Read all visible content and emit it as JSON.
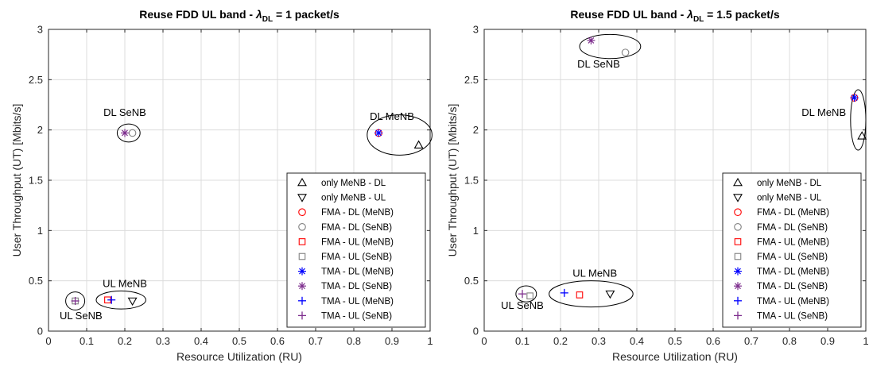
{
  "chart_data": [
    {
      "type": "scatter",
      "title_prefix": "Reuse FDD UL band  - ",
      "title_symbol": "λ",
      "title_subscript": "DL",
      "title_suffix": " = 1 packet/s",
      "xlabel": "Resource Utilization (RU)",
      "ylabel": "User Throughput (UT) [Mbits/s]",
      "xlim": [
        0,
        1
      ],
      "ylim": [
        0,
        3
      ],
      "xticks": [
        "0",
        "0.1",
        "0.2",
        "0.3",
        "0.4",
        "0.5",
        "0.6",
        "0.7",
        "0.8",
        "0.9",
        "1"
      ],
      "yticks": [
        "0",
        "0.5",
        "1",
        "1.5",
        "2",
        "2.5",
        "3"
      ],
      "grid": true,
      "legend_position": "bottom-right",
      "series": [
        {
          "name": "only MeNB - DL",
          "marker": "triangle-up",
          "color": "#000000",
          "points": [
            [
              0.97,
              1.85
            ]
          ]
        },
        {
          "name": "only MeNB - UL",
          "marker": "triangle-down",
          "color": "#000000",
          "points": [
            [
              0.22,
              0.3
            ]
          ]
        },
        {
          "name": "FMA - DL (MeNB)",
          "marker": "circle",
          "color": "#ff0000",
          "points": [
            [
              0.865,
              1.97
            ]
          ]
        },
        {
          "name": "FMA - DL (SeNB)",
          "marker": "circle",
          "color": "#808080",
          "points": [
            [
              0.22,
              1.97
            ]
          ]
        },
        {
          "name": "FMA - UL (MeNB)",
          "marker": "square",
          "color": "#ff0000",
          "points": [
            [
              0.155,
              0.31
            ]
          ]
        },
        {
          "name": "FMA - UL (SeNB)",
          "marker": "square",
          "color": "#808080",
          "points": [
            [
              0.07,
              0.3
            ]
          ]
        },
        {
          "name": "TMA - DL (MeNB)",
          "marker": "asterisk",
          "color": "#0000ff",
          "points": [
            [
              0.865,
              1.97
            ]
          ]
        },
        {
          "name": "TMA - DL (SeNB)",
          "marker": "asterisk",
          "color": "#7e2f8e",
          "points": [
            [
              0.2,
              1.97
            ]
          ]
        },
        {
          "name": "TMA - UL (MeNB)",
          "marker": "plus",
          "color": "#0000ff",
          "points": [
            [
              0.165,
              0.31
            ]
          ]
        },
        {
          "name": "TMA - UL (SeNB)",
          "marker": "plus",
          "color": "#7e2f8e",
          "points": [
            [
              0.07,
              0.3
            ]
          ]
        }
      ],
      "annotations": [
        {
          "text": "DL MeNB",
          "x": 0.9,
          "y": 2.1
        },
        {
          "text": "DL SeNB",
          "x": 0.2,
          "y": 2.14
        },
        {
          "text": "UL MeNB",
          "x": 0.2,
          "y": 0.44
        },
        {
          "text": "UL SeNB",
          "x": 0.085,
          "y": 0.12
        }
      ],
      "ellipses": [
        {
          "cx": 0.92,
          "cy": 1.95,
          "rx": 0.085,
          "ry": 0.2
        },
        {
          "cx": 0.21,
          "cy": 1.97,
          "rx": 0.03,
          "ry": 0.09
        },
        {
          "cx": 0.19,
          "cy": 0.31,
          "rx": 0.065,
          "ry": 0.09
        },
        {
          "cx": 0.07,
          "cy": 0.3,
          "rx": 0.025,
          "ry": 0.09
        }
      ]
    },
    {
      "type": "scatter",
      "title_prefix": "Reuse FDD UL band  - ",
      "title_symbol": "λ",
      "title_subscript": "DL",
      "title_suffix": " = 1.5 packet/s",
      "xlabel": "Resource Utilization (RU)",
      "ylabel": "User Throughput (UT) [Mbits/s]",
      "xlim": [
        0,
        1
      ],
      "ylim": [
        0,
        3
      ],
      "xticks": [
        "0",
        "0.1",
        "0.2",
        "0.3",
        "0.4",
        "0.5",
        "0.6",
        "0.7",
        "0.8",
        "0.9",
        "1"
      ],
      "yticks": [
        "0",
        "0.5",
        "1",
        "1.5",
        "2",
        "2.5",
        "3"
      ],
      "grid": true,
      "legend_position": "bottom-right",
      "series": [
        {
          "name": "only MeNB - DL",
          "marker": "triangle-up",
          "color": "#000000",
          "points": [
            [
              0.99,
              1.94
            ]
          ]
        },
        {
          "name": "only MeNB - UL",
          "marker": "triangle-down",
          "color": "#000000",
          "points": [
            [
              0.33,
              0.37
            ]
          ]
        },
        {
          "name": "FMA - DL (MeNB)",
          "marker": "circle",
          "color": "#ff0000",
          "points": [
            [
              0.97,
              2.32
            ]
          ]
        },
        {
          "name": "FMA - DL (SeNB)",
          "marker": "circle",
          "color": "#808080",
          "points": [
            [
              0.37,
              2.77
            ]
          ]
        },
        {
          "name": "FMA - UL (MeNB)",
          "marker": "square",
          "color": "#ff0000",
          "points": [
            [
              0.25,
              0.36
            ]
          ]
        },
        {
          "name": "FMA - UL (SeNB)",
          "marker": "square",
          "color": "#808080",
          "points": [
            [
              0.12,
              0.35
            ]
          ]
        },
        {
          "name": "TMA - DL (MeNB)",
          "marker": "asterisk",
          "color": "#0000ff",
          "points": [
            [
              0.97,
              2.32
            ]
          ]
        },
        {
          "name": "TMA - DL (SeNB)",
          "marker": "asterisk",
          "color": "#7e2f8e",
          "points": [
            [
              0.28,
              2.89
            ]
          ]
        },
        {
          "name": "TMA - UL (MeNB)",
          "marker": "plus",
          "color": "#0000ff",
          "points": [
            [
              0.21,
              0.38
            ]
          ]
        },
        {
          "name": "TMA - UL (SeNB)",
          "marker": "plus",
          "color": "#7e2f8e",
          "points": [
            [
              0.1,
              0.37
            ]
          ]
        }
      ],
      "annotations": [
        {
          "text": "DL MeNB",
          "x": 0.89,
          "y": 2.14
        },
        {
          "text": "DL SeNB",
          "x": 0.3,
          "y": 2.62
        },
        {
          "text": "UL MeNB",
          "x": 0.29,
          "y": 0.54
        },
        {
          "text": "UL SeNB",
          "x": 0.1,
          "y": 0.22
        }
      ],
      "ellipses": [
        {
          "cx": 0.98,
          "cy": 2.1,
          "rx": 0.02,
          "ry": 0.3
        },
        {
          "cx": 0.33,
          "cy": 2.83,
          "rx": 0.08,
          "ry": 0.12
        },
        {
          "cx": 0.28,
          "cy": 0.37,
          "rx": 0.11,
          "ry": 0.13
        },
        {
          "cx": 0.11,
          "cy": 0.37,
          "rx": 0.027,
          "ry": 0.08
        }
      ]
    }
  ]
}
